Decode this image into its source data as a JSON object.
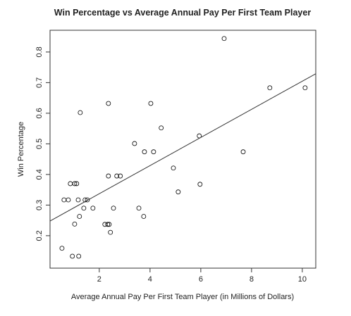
{
  "chart_data": {
    "type": "scatter",
    "title": "Win Percentage vs Average Annual Pay Per First Team Player",
    "xlabel": "Average Annual Pay Per First Team Player (in Millions of Dollars)",
    "ylabel": "Win Percentage",
    "color": "#000000",
    "series": [
      {
        "x": [
          0.53,
          0.61,
          0.78,
          0.86,
          1.03,
          1.11,
          0.94,
          1.03,
          1.17,
          1.19,
          1.22,
          1.25,
          1.39,
          1.44,
          1.53,
          1.75,
          2.22,
          2.33,
          2.39,
          2.36,
          2.36,
          2.44,
          2.56,
          2.69,
          2.83,
          3.39,
          3.56,
          3.75,
          3.78,
          4.03,
          4.14,
          4.44,
          4.92,
          5.11,
          5.94,
          5.97,
          6.92,
          7.67,
          8.72,
          10.11
        ],
        "values": [
          0.159,
          0.317,
          0.317,
          0.37,
          0.37,
          0.37,
          0.133,
          0.238,
          0.317,
          0.133,
          0.263,
          0.602,
          0.29,
          0.317,
          0.317,
          0.29,
          0.237,
          0.237,
          0.237,
          0.395,
          0.632,
          0.211,
          0.29,
          0.395,
          0.395,
          0.501,
          0.29,
          0.263,
          0.474,
          0.632,
          0.474,
          0.552,
          0.421,
          0.343,
          0.526,
          0.368,
          0.844,
          0.474,
          0.683,
          0.683
        ]
      }
    ],
    "fit_line": {
      "x": [
        0.06,
        10.53
      ],
      "values": [
        0.248,
        0.729
      ]
    },
    "xlim": [
      0.06,
      10.53
    ],
    "ylim": [
      0.094,
      0.871
    ],
    "xticks": [
      2,
      4,
      6,
      8,
      10
    ],
    "yticks": [
      0.2,
      0.3,
      0.4,
      0.5,
      0.6,
      0.7,
      0.8
    ]
  }
}
